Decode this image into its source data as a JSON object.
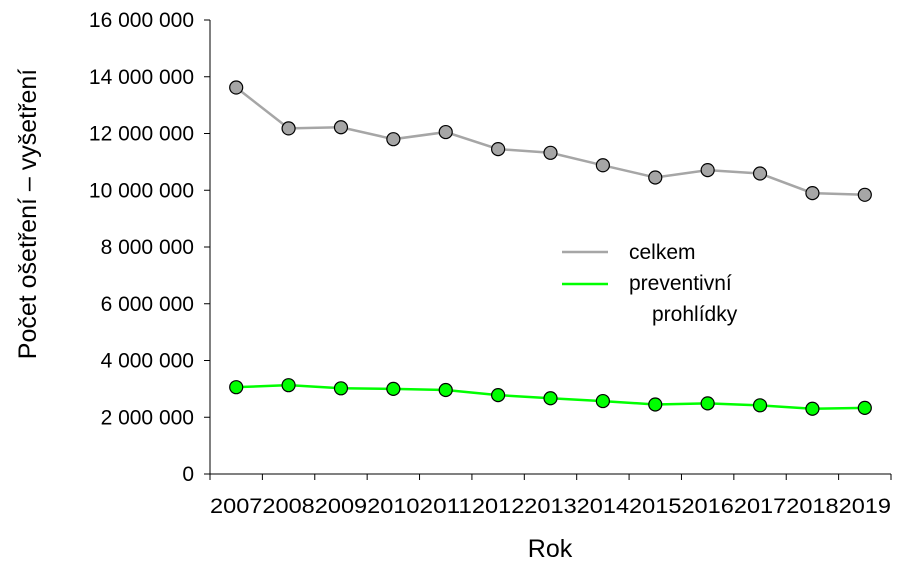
{
  "chart_data": {
    "type": "line",
    "title": "",
    "xlabel": "Rok",
    "ylabel": "Počet ošetření – vyšetření",
    "categories": [
      "2007",
      "2008",
      "2009",
      "2010",
      "2011",
      "2012",
      "2013",
      "2014",
      "2015",
      "2016",
      "2017",
      "2018",
      "2019"
    ],
    "ylim": [
      0,
      16000000
    ],
    "yticks": [
      0,
      2000000,
      4000000,
      6000000,
      8000000,
      10000000,
      12000000,
      14000000,
      16000000
    ],
    "ytick_labels": [
      "0",
      "2 000 000",
      "4 000 000",
      "6 000 000",
      "8 000 000",
      "10 000 000",
      "12 000 000",
      "14 000 000",
      "16 000 000"
    ],
    "grid": false,
    "legend_position": "right-middle",
    "series": [
      {
        "name": "celkem",
        "line_color": "#a6a6a6",
        "marker_color": "#a6a6a6",
        "values": [
          13620000,
          12180000,
          12220000,
          11800000,
          12050000,
          11450000,
          11320000,
          10880000,
          10450000,
          10710000,
          10590000,
          9900000,
          9840000
        ]
      },
      {
        "name": "preventivní prohlídky",
        "name_lines": [
          "preventivní",
          "prohlídky"
        ],
        "line_color": "#00ff00",
        "marker_color": "#00ff00",
        "values": [
          3060000,
          3130000,
          3020000,
          3000000,
          2960000,
          2780000,
          2670000,
          2570000,
          2450000,
          2490000,
          2420000,
          2300000,
          2330000
        ]
      }
    ]
  }
}
